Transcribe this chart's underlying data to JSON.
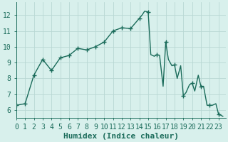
{
  "x": [
    0,
    1,
    2,
    3,
    4,
    5,
    6,
    7,
    8,
    9,
    10,
    11,
    12,
    13,
    14,
    14.3,
    14.6,
    15,
    15.3,
    15.7,
    16,
    16.3,
    16.7,
    17,
    17.3,
    17.7,
    18,
    18.3,
    18.7,
    19,
    19.3,
    19.7,
    20,
    20.3,
    20.7,
    21,
    21.3,
    21.7,
    22,
    22.3,
    22.7,
    23,
    23.5
  ],
  "y": [
    6.3,
    6.4,
    8.2,
    9.2,
    8.5,
    9.3,
    9.45,
    9.9,
    9.8,
    10.0,
    10.3,
    11.0,
    11.2,
    11.15,
    11.8,
    12.0,
    12.25,
    12.2,
    9.5,
    9.4,
    9.5,
    9.45,
    7.5,
    10.3,
    9.2,
    8.8,
    8.85,
    8.0,
    8.8,
    6.9,
    7.1,
    7.6,
    7.7,
    7.2,
    8.2,
    7.5,
    7.5,
    6.3,
    6.3,
    6.3,
    6.4,
    5.75,
    5.6
  ],
  "marker_x": [
    0,
    1,
    2,
    3,
    4,
    5,
    6,
    7,
    8,
    9,
    10,
    11,
    12,
    13,
    14,
    15,
    16,
    17,
    18,
    19,
    20,
    21,
    22,
    23
  ],
  "marker_y": [
    6.3,
    6.4,
    8.2,
    9.2,
    8.5,
    9.3,
    9.45,
    9.9,
    9.8,
    10.0,
    10.3,
    11.0,
    11.2,
    11.15,
    11.8,
    12.2,
    9.5,
    10.3,
    8.85,
    6.9,
    7.7,
    7.5,
    6.3,
    5.75
  ],
  "line_color": "#1a6b5a",
  "bg_color": "#d8f0ec",
  "grid_major_color": "#b8d8d4",
  "grid_minor_color": "#c8e8e4",
  "xlabel": "Humidex (Indice chaleur)",
  "xlim": [
    0,
    23.8
  ],
  "ylim": [
    5.5,
    12.8
  ],
  "xticks": [
    0,
    1,
    2,
    3,
    4,
    5,
    6,
    7,
    8,
    9,
    10,
    11,
    12,
    13,
    14,
    15,
    16,
    17,
    18,
    19,
    20,
    21,
    22,
    23
  ],
  "yticks": [
    6,
    7,
    8,
    9,
    10,
    11,
    12
  ],
  "tick_fontsize": 7,
  "xlabel_fontsize": 8,
  "linewidth": 1.0,
  "markersize": 4,
  "markeredgewidth": 1.0
}
